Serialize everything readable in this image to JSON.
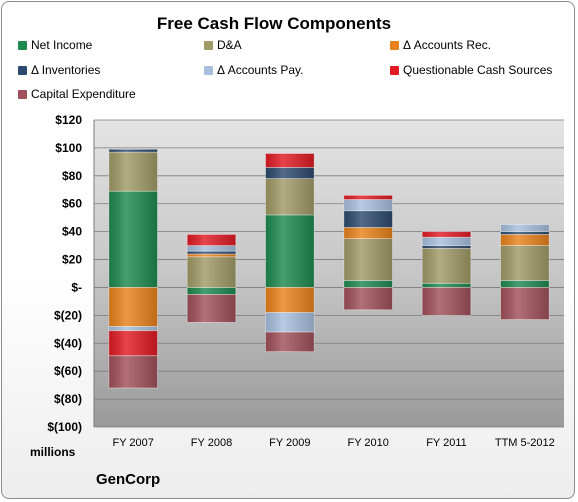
{
  "chart_data": {
    "type": "bar",
    "stacked": true,
    "title": "Free Cash Flow Components",
    "unit_label": "millions",
    "brand": "GenCorp",
    "categories": [
      "FY 2007",
      "FY 2008",
      "FY 2009",
      "FY 2010",
      "FY 2011",
      "TTM 5-2012"
    ],
    "ylim": [
      -100,
      120
    ],
    "yticks": [
      {
        "value": 120,
        "label": "$120"
      },
      {
        "value": 100,
        "label": "$100"
      },
      {
        "value": 80,
        "label": "$80"
      },
      {
        "value": 60,
        "label": "$60"
      },
      {
        "value": 40,
        "label": "$40"
      },
      {
        "value": 20,
        "label": "$20"
      },
      {
        "value": 0,
        "label": "$-"
      },
      {
        "value": -20,
        "label": "$(20)"
      },
      {
        "value": -40,
        "label": "$(40)"
      },
      {
        "value": -60,
        "label": "$(60)"
      },
      {
        "value": -80,
        "label": "$(80)"
      },
      {
        "value": -100,
        "label": "$(100)"
      }
    ],
    "grid": true,
    "legend_position": "top",
    "series": [
      {
        "name": "Net Income",
        "color": "#1e8a4f",
        "values": [
          69,
          -5,
          52,
          5,
          3,
          5
        ]
      },
      {
        "name": "D&A",
        "color": "#a09a66",
        "values": [
          28,
          22,
          26,
          30,
          25,
          25
        ]
      },
      {
        "name": "Δ Accounts Rec.",
        "color": "#e8821c",
        "values": [
          -28,
          2,
          -18,
          8,
          0,
          8
        ]
      },
      {
        "name": "Δ Inventories",
        "color": "#2c4a6e",
        "values": [
          2,
          2,
          8,
          12,
          2,
          2
        ]
      },
      {
        "name": "Δ Accounts Pay.",
        "color": "#a7bfdd",
        "values": [
          -3,
          4,
          -14,
          8,
          6,
          5
        ]
      },
      {
        "name": "Questionable Cash Sources",
        "color": "#e01b24",
        "values": [
          -18,
          8,
          10,
          3,
          4,
          0
        ]
      },
      {
        "name": "Capital Expenditure",
        "color": "#a0505a",
        "values": [
          -23,
          -20,
          -14,
          -16,
          -20,
          -23
        ]
      }
    ]
  }
}
